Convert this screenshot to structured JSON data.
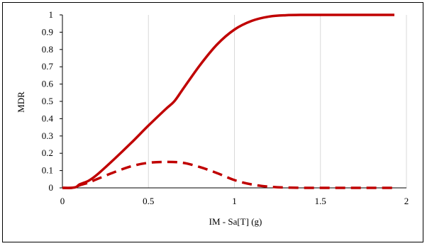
{
  "chart_data": {
    "type": "line",
    "title": "",
    "xlabel": "IM - Sa[T] (g)",
    "ylabel": "MDR",
    "xlim": [
      0,
      2
    ],
    "ylim": [
      0,
      1
    ],
    "x_ticks": [
      0,
      0.5,
      1,
      1.5,
      2
    ],
    "y_ticks": [
      0,
      0.1,
      0.2,
      0.3,
      0.4,
      0.5,
      0.6,
      0.7,
      0.8,
      0.9,
      1
    ],
    "grid": "vertical",
    "legend": "none",
    "series": [
      {
        "style": "solid",
        "color": "#c00000",
        "x": [
          0,
          0.05,
          0.08,
          0.1,
          0.15,
          0.2,
          0.3,
          0.4,
          0.5,
          0.6,
          0.65,
          0.7,
          0.8,
          0.9,
          1.0,
          1.1,
          1.2,
          1.3,
          1.4,
          1.5,
          1.6,
          1.7,
          1.8,
          1.93
        ],
        "y": [
          0,
          0,
          0.005,
          0.02,
          0.04,
          0.075,
          0.165,
          0.26,
          0.36,
          0.455,
          0.5,
          0.57,
          0.71,
          0.83,
          0.915,
          0.965,
          0.99,
          0.998,
          1,
          1,
          1,
          1,
          1,
          1
        ]
      },
      {
        "style": "dashed",
        "color": "#c00000",
        "x": [
          0,
          0.05,
          0.08,
          0.1,
          0.15,
          0.2,
          0.3,
          0.4,
          0.5,
          0.6,
          0.7,
          0.8,
          0.9,
          1.0,
          1.1,
          1.2,
          1.3,
          1.4,
          1.5,
          1.6,
          1.7,
          1.8,
          1.93
        ],
        "y": [
          0,
          0,
          0.005,
          0.015,
          0.03,
          0.05,
          0.09,
          0.125,
          0.145,
          0.15,
          0.145,
          0.12,
          0.085,
          0.045,
          0.02,
          0.007,
          0.002,
          0,
          0,
          0,
          0,
          0,
          0
        ]
      }
    ]
  }
}
